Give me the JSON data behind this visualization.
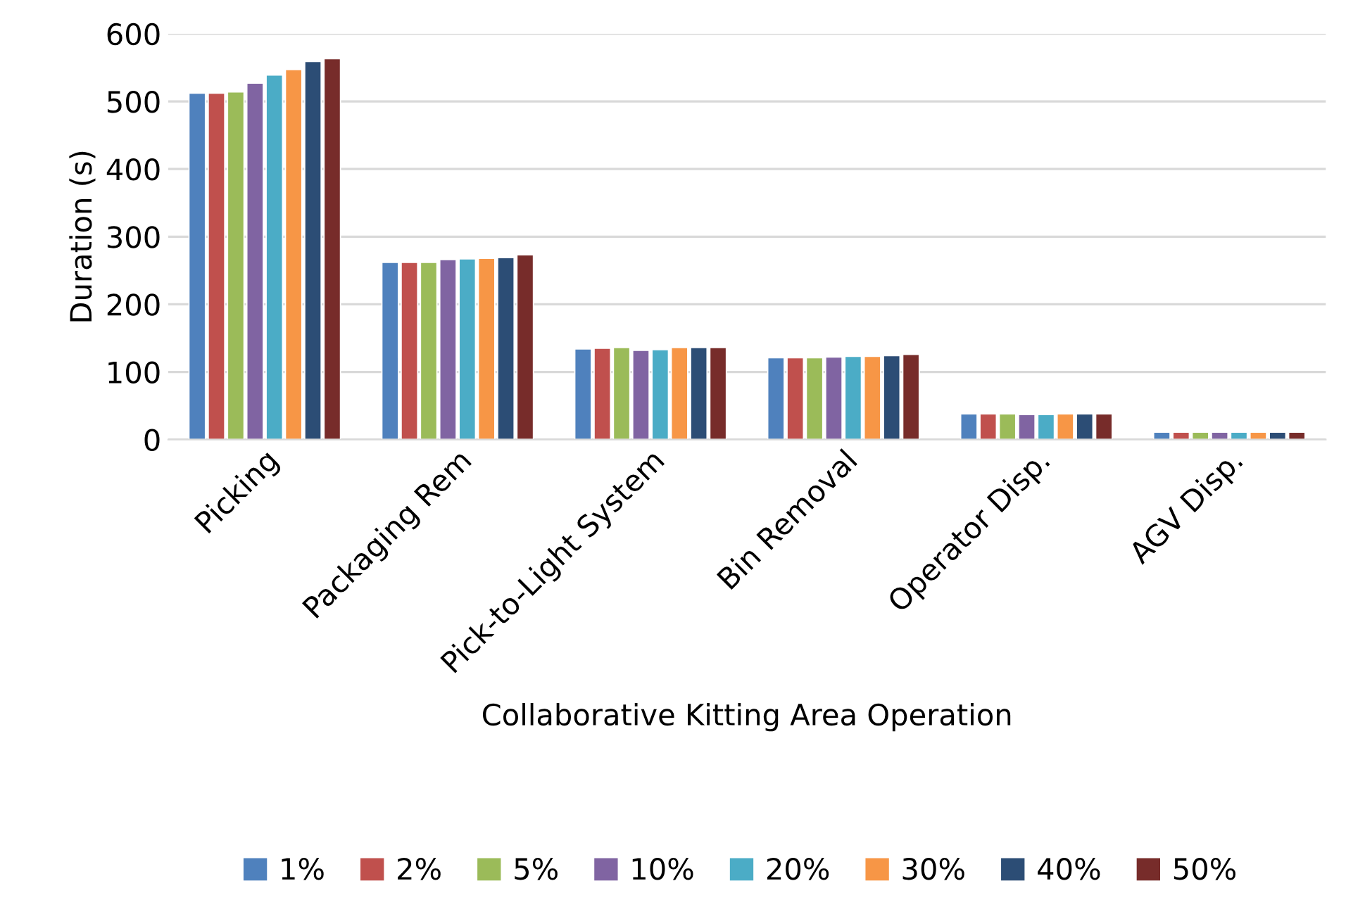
{
  "chart_data": {
    "type": "bar",
    "xlabel": "Collaborative Kitting Area Operation",
    "ylabel": "Duration (s)",
    "categories": [
      "Picking",
      "Packaging Rem",
      "Pick-to-Light System",
      "Bin Removal",
      "Operator Disp.",
      "AGV Disp."
    ],
    "series": [
      {
        "name": "1%",
        "color": "#4f81bd",
        "values": [
          512,
          262,
          134,
          121,
          38,
          11
        ]
      },
      {
        "name": "2%",
        "color": "#c0504d",
        "values": [
          512,
          262,
          135,
          121,
          38,
          11
        ]
      },
      {
        "name": "5%",
        "color": "#9bbb59",
        "values": [
          514,
          262,
          136,
          121,
          38,
          11
        ]
      },
      {
        "name": "10%",
        "color": "#8064a2",
        "values": [
          527,
          266,
          132,
          122,
          37,
          11
        ]
      },
      {
        "name": "20%",
        "color": "#4bacc6",
        "values": [
          539,
          267,
          133,
          123,
          37,
          11
        ]
      },
      {
        "name": "30%",
        "color": "#f79646",
        "values": [
          547,
          268,
          136,
          123,
          38,
          11
        ]
      },
      {
        "name": "40%",
        "color": "#2c4d75",
        "values": [
          559,
          269,
          136,
          124,
          38,
          11
        ]
      },
      {
        "name": "50%",
        "color": "#772c2a",
        "values": [
          563,
          273,
          136,
          126,
          38,
          11
        ]
      }
    ],
    "ylim": [
      0,
      600
    ],
    "yticks": [
      0,
      100,
      200,
      300,
      400,
      500,
      600
    ],
    "grid": "y",
    "legend": "bottom"
  }
}
